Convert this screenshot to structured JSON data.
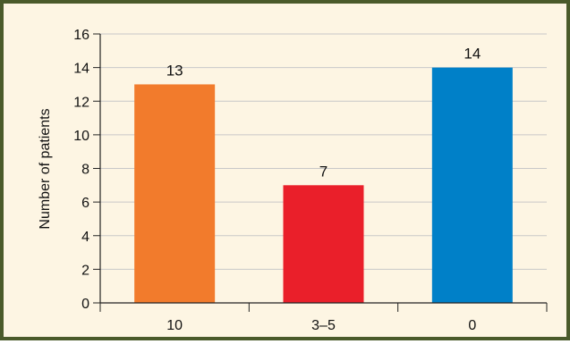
{
  "chart_data": {
    "type": "bar",
    "title": "",
    "xlabel": "",
    "ylabel": "Number of patients",
    "categories": [
      "10",
      "3–5",
      "0"
    ],
    "values": [
      13,
      7,
      14
    ],
    "data_labels": [
      "13",
      "7",
      "14"
    ],
    "bar_colors": [
      "#f27b2c",
      "#ea1f2a",
      "#0080c8"
    ],
    "ylim": [
      0,
      16
    ],
    "y_ticks": [
      0,
      2,
      4,
      6,
      8,
      10,
      12,
      14,
      16
    ],
    "grid": true,
    "legend": "none"
  },
  "style": {
    "frame_border_color": "#4a5a2a",
    "background_color": "#fdf5e3",
    "grid_color": "#c8c8c8",
    "axis_color": "#222222"
  }
}
